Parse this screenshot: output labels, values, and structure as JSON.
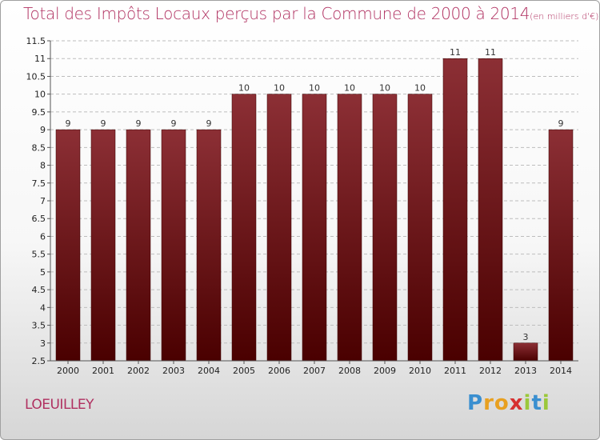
{
  "chart_data": {
    "type": "bar",
    "title": "Total des Impôts Locaux perçus par la Commune de 2000 à 2014",
    "unit": "(en milliers d'€)",
    "categories": [
      "2000",
      "2001",
      "2002",
      "2003",
      "2004",
      "2005",
      "2006",
      "2007",
      "2008",
      "2009",
      "2010",
      "2011",
      "2012",
      "2013",
      "2014"
    ],
    "values": [
      9,
      9,
      9,
      9,
      9,
      10,
      10,
      10,
      10,
      10,
      10,
      11,
      11,
      3,
      9
    ],
    "ylim": [
      2.5,
      11.5
    ],
    "yticks": [
      "2.5",
      "3",
      "3.5",
      "4",
      "4.5",
      "5",
      "5.5",
      "6",
      "6.5",
      "7",
      "7.5",
      "8",
      "8.5",
      "9",
      "9.5",
      "10",
      "10.5",
      "11",
      "11.5"
    ],
    "grid": true,
    "bar_color": "#7a1a1a"
  },
  "commune": "LOEUILLEY",
  "logo": {
    "letters": [
      "P",
      "r",
      "o",
      "x",
      "i",
      "t",
      "i"
    ],
    "colors": [
      "#3a8fd0",
      "#e8a020",
      "#e8a020",
      "#d63030",
      "#9bc83a",
      "#3a8fd0",
      "#9bc83a"
    ]
  }
}
